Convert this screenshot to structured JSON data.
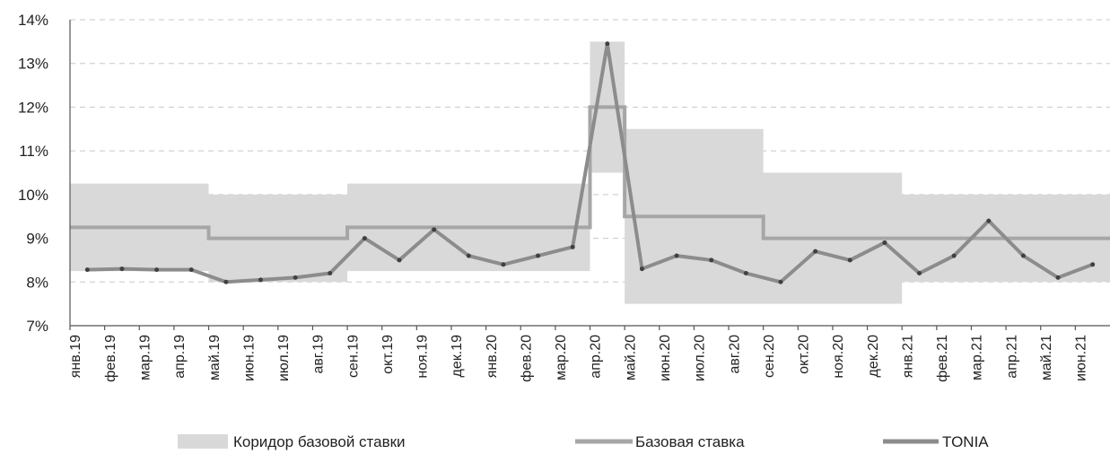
{
  "chart_data": {
    "type": "line",
    "title": "",
    "xlabel": "",
    "ylabel": "",
    "ylim": [
      7,
      14
    ],
    "y_ticks": [
      "7%",
      "8%",
      "9%",
      "10%",
      "11%",
      "12%",
      "13%",
      "14%"
    ],
    "categories": [
      "янв.19",
      "фев.19",
      "мар.19",
      "апр.19",
      "май.19",
      "июн.19",
      "июл.19",
      "авг.19",
      "сен.19",
      "окт.19",
      "ноя.19",
      "дек.19",
      "янв.20",
      "фев.20",
      "мар.20",
      "апр.20",
      "май.20",
      "июн.20",
      "июл.20",
      "авг.20",
      "сен.20",
      "окт.20",
      "ноя.20",
      "дек.20",
      "янв.21",
      "фев.21",
      "мар.21",
      "апр.21",
      "май.21",
      "июн.21"
    ],
    "grid": true,
    "legend_position": "bottom",
    "colors": {
      "corridor": "#d9d9d9",
      "base_rate": "#a6a6a6",
      "tonia": "#8c8c8c",
      "tonia_dark": "#404040"
    },
    "series": [
      {
        "name": "Коридор базовой ставки",
        "kind": "band",
        "lower": [
          8.25,
          8.25,
          8.25,
          8.25,
          8.0,
          8.0,
          8.0,
          8.0,
          8.25,
          8.25,
          8.25,
          8.25,
          8.25,
          8.25,
          8.25,
          10.5,
          7.5,
          7.5,
          7.5,
          7.5,
          7.5,
          7.5,
          7.5,
          7.5,
          8.0,
          8.0,
          8.0,
          8.0,
          8.0,
          8.0
        ],
        "upper": [
          10.25,
          10.25,
          10.25,
          10.25,
          10.0,
          10.0,
          10.0,
          10.0,
          10.25,
          10.25,
          10.25,
          10.25,
          10.25,
          10.25,
          10.25,
          13.5,
          11.5,
          11.5,
          11.5,
          11.5,
          10.5,
          10.5,
          10.5,
          10.5,
          10.0,
          10.0,
          10.0,
          10.0,
          10.0,
          10.0
        ]
      },
      {
        "name": "Базовая ставка",
        "values": [
          9.25,
          9.25,
          9.25,
          9.25,
          9.0,
          9.0,
          9.0,
          9.0,
          9.25,
          9.25,
          9.25,
          9.25,
          9.25,
          9.25,
          9.25,
          12.0,
          9.5,
          9.5,
          9.5,
          9.5,
          9.0,
          9.0,
          9.0,
          9.0,
          9.0,
          9.0,
          9.0,
          9.0,
          9.0,
          9.0
        ]
      },
      {
        "name": "TONIA",
        "values": [
          8.28,
          8.3,
          8.28,
          8.28,
          8.0,
          8.05,
          8.1,
          8.2,
          9.0,
          8.5,
          9.2,
          8.6,
          8.4,
          8.6,
          8.8,
          13.45,
          8.3,
          8.6,
          8.5,
          8.2,
          8.0,
          8.7,
          8.5,
          8.9,
          8.2,
          8.6,
          9.4,
          8.6,
          8.1,
          8.4
        ]
      }
    ]
  },
  "legend": {
    "corridor_label": "Коридор базовой ставки",
    "base_label": "Базовая ставка",
    "tonia_label": "TONIA"
  }
}
